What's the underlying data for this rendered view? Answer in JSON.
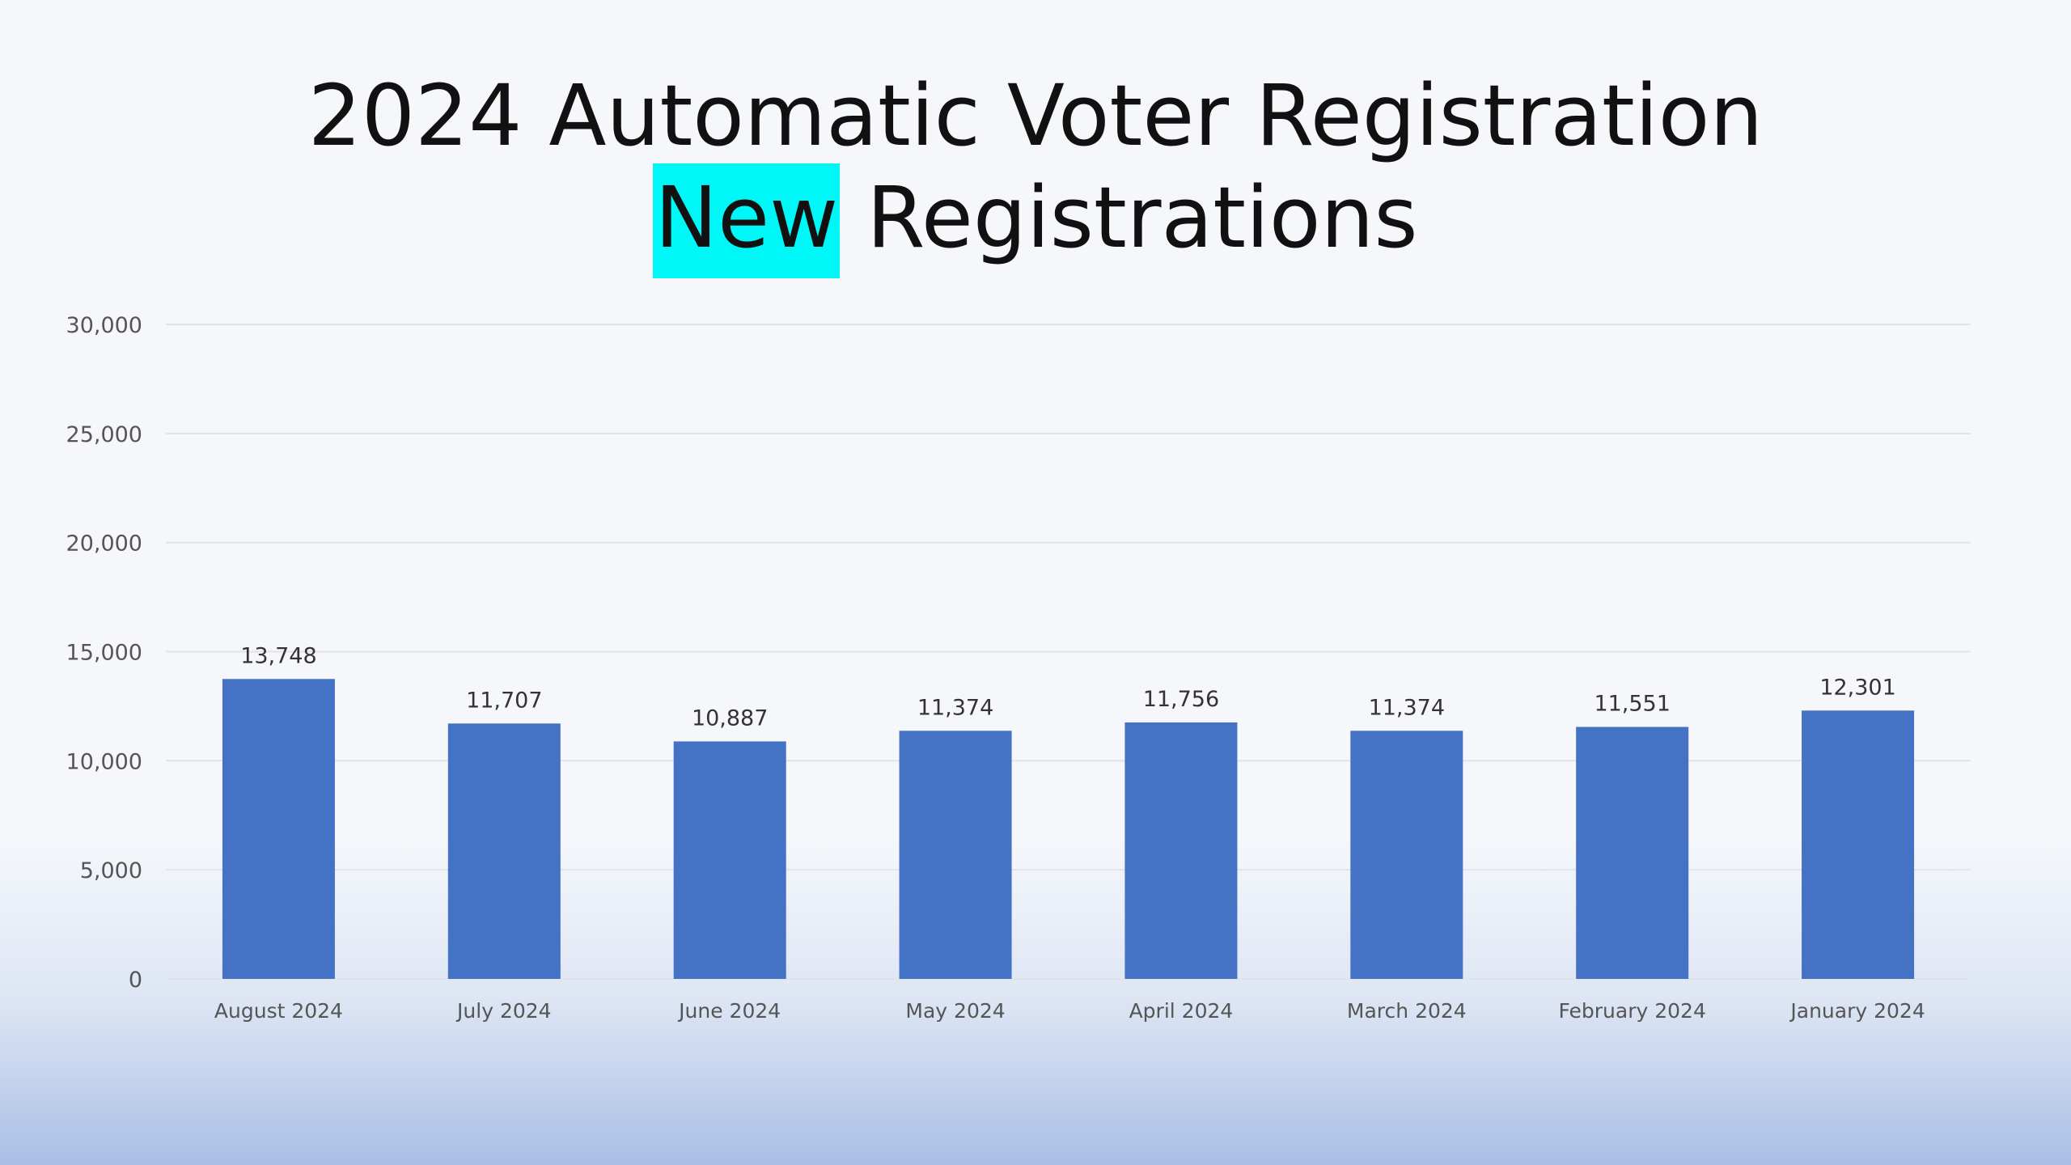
{
  "title": {
    "line1": "2024 Automatic Voter Registration",
    "highlight_word": "New",
    "line2_rest": " Registrations"
  },
  "colors": {
    "bar": "#4472c4",
    "highlight": "#00f7f7"
  },
  "chart_data": {
    "type": "bar",
    "title": "2024 Automatic Voter Registration New Registrations",
    "xlabel": "",
    "ylabel": "",
    "categories": [
      "August 2024",
      "July 2024",
      "June 2024",
      "May 2024",
      "April 2024",
      "March 2024",
      "February 2024",
      "January 2024"
    ],
    "values": [
      13748,
      11707,
      10887,
      11374,
      11756,
      11374,
      11551,
      12301
    ],
    "data_labels": [
      "13,748",
      "11,707",
      "10,887",
      "11,374",
      "11,756",
      "11,374",
      "11,551",
      "12,301"
    ],
    "ylim": [
      0,
      30000
    ],
    "yticks": [
      0,
      5000,
      10000,
      15000,
      20000,
      25000,
      30000
    ],
    "ytick_labels": [
      "0",
      "5,000",
      "10,000",
      "15,000",
      "20,000",
      "25,000",
      "30,000"
    ],
    "grid": true,
    "legend": "none"
  }
}
